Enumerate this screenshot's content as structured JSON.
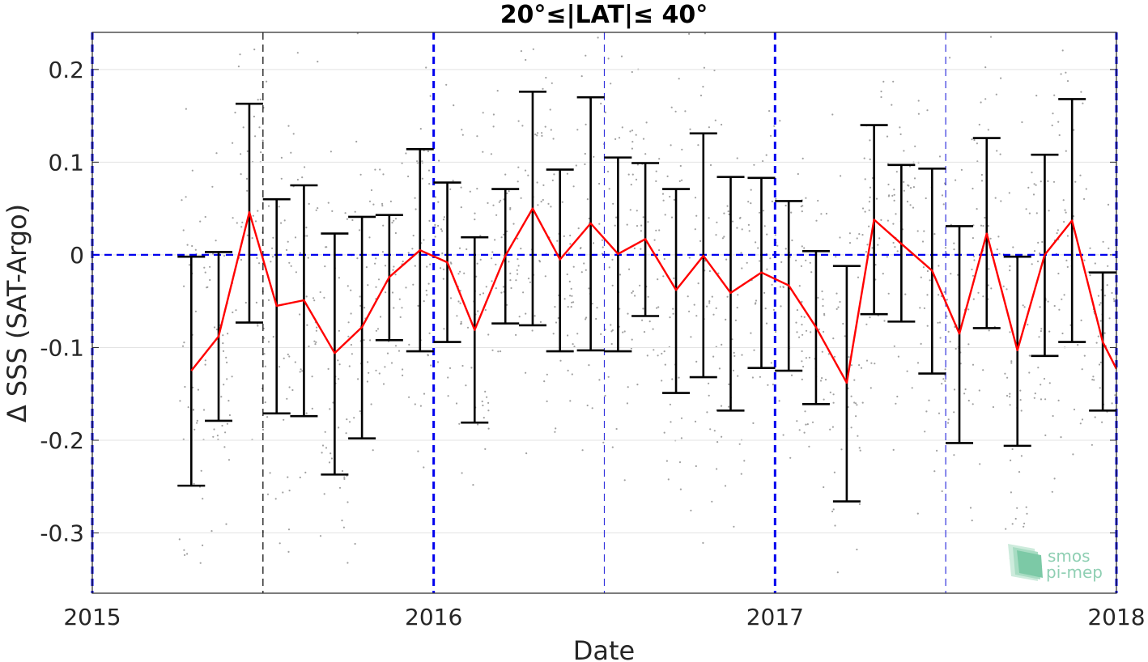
{
  "chart_data": {
    "type": "line",
    "title": "20°≤|LAT|≤ 40°",
    "xlabel": "Date",
    "ylabel": "Δ SSS (SAT-Argo)",
    "xlim": [
      2015.0,
      2018.0
    ],
    "ylim": [
      -0.365,
      0.24
    ],
    "x_ticks": [
      {
        "value": 2015,
        "label": "2015"
      },
      {
        "value": 2016,
        "label": "2016"
      },
      {
        "value": 2017,
        "label": "2017"
      },
      {
        "value": 2018,
        "label": "2018"
      }
    ],
    "y_ticks": [
      {
        "value": 0.2,
        "label": "0.2"
      },
      {
        "value": 0.1,
        "label": "0.1"
      },
      {
        "value": 0,
        "label": "0"
      },
      {
        "value": -0.1,
        "label": "-0.1"
      },
      {
        "value": -0.2,
        "label": "-0.2"
      },
      {
        "value": -0.3,
        "label": "-0.3"
      }
    ],
    "grid": "horizontal",
    "zero_line": {
      "value": 0,
      "color": "#0000ee",
      "style": "dashed"
    },
    "year_lines": {
      "values": [
        2015,
        2016,
        2017,
        2018
      ],
      "color": "#0000ee",
      "style": "dashed-thick"
    },
    "half_year_lines": [
      {
        "value": 2015.5,
        "color": "#000000"
      },
      {
        "value": 2016.5,
        "color": "#3333dd"
      },
      {
        "value": 2017.5,
        "color": "#3333dd"
      }
    ],
    "series": [
      {
        "type": "errorbar-line",
        "color": "#ff0000",
        "errorbar_color": "#000000",
        "x": [
          2015.29,
          2015.37,
          2015.46,
          2015.54,
          2015.62,
          2015.71,
          2015.79,
          2015.87,
          2015.96,
          2016.04,
          2016.12,
          2016.21,
          2016.29,
          2016.37,
          2016.46,
          2016.54,
          2016.62,
          2016.71,
          2016.79,
          2016.87,
          2016.96,
          2017.04,
          2017.12,
          2017.21,
          2017.29,
          2017.37,
          2017.46,
          2017.54,
          2017.62,
          2017.71,
          2017.79,
          2017.87,
          2017.96,
          2018.0
        ],
        "y": [
          -0.125,
          -0.088,
          0.046,
          -0.055,
          -0.049,
          -0.106,
          -0.078,
          -0.024,
          0.005,
          -0.008,
          -0.081,
          -0.001,
          0.05,
          -0.005,
          0.034,
          0.001,
          0.017,
          -0.038,
          -0.001,
          -0.041,
          -0.019,
          -0.033,
          -0.078,
          -0.138,
          0.038,
          0.012,
          -0.017,
          -0.085,
          0.023,
          -0.103,
          0.0,
          0.037,
          -0.094,
          -0.123
        ],
        "upper": [
          -0.002,
          0.003,
          0.163,
          0.06,
          0.075,
          0.023,
          0.041,
          0.043,
          0.114,
          0.078,
          0.019,
          0.071,
          0.176,
          0.092,
          0.17,
          0.105,
          0.099,
          0.071,
          0.131,
          0.084,
          0.083,
          0.058,
          0.004,
          -0.012,
          0.14,
          0.097,
          0.093,
          0.031,
          0.126,
          -0.002,
          0.108,
          0.168,
          -0.019,
          null
        ],
        "lower": [
          -0.249,
          -0.179,
          -0.073,
          -0.171,
          -0.174,
          -0.237,
          -0.198,
          -0.092,
          -0.104,
          -0.094,
          -0.181,
          -0.074,
          -0.076,
          -0.104,
          -0.103,
          -0.104,
          -0.066,
          -0.149,
          -0.132,
          -0.168,
          -0.122,
          -0.125,
          -0.161,
          -0.266,
          -0.064,
          -0.072,
          -0.128,
          -0.203,
          -0.079,
          -0.206,
          -0.109,
          -0.094,
          -0.168,
          null
        ]
      }
    ],
    "scatter_background": {
      "color": "#a0a0a0",
      "description_count": 1500
    }
  },
  "logo": {
    "line1": "smos",
    "line2": "pi-mep"
  }
}
